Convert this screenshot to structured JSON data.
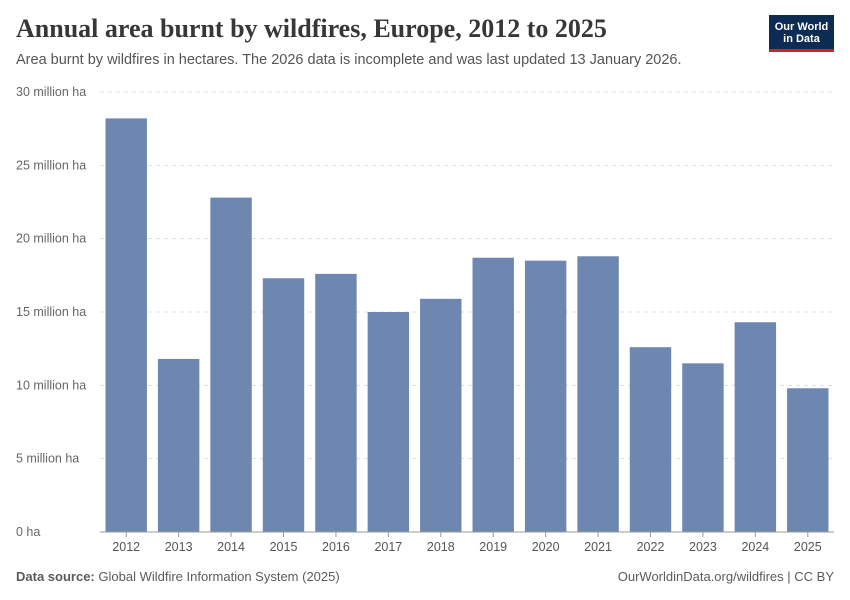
{
  "header": {
    "title": "Annual area burnt by wildfires, Europe, 2012 to 2025",
    "subtitle": "Area burnt by wildfires in hectares. The 2026 data is incomplete and was last updated 13 January 2026.",
    "logo_line1": "Our World",
    "logo_line2": "in Data"
  },
  "footer": {
    "source_label": "Data source:",
    "source_text": "Global Wildfire Information System (2025)",
    "credit": "OurWorldinData.org/wildfires | CC BY"
  },
  "colors": {
    "bar": "#6e87b0",
    "grid": "#dddddd",
    "axis": "#999999",
    "logo_bg": "#0d2c54",
    "logo_accent": "#ce261e"
  },
  "chart_data": {
    "type": "bar",
    "title": "Annual area burnt by wildfires, Europe, 2012 to 2025",
    "xlabel": "",
    "ylabel": "",
    "categories": [
      "2012",
      "2013",
      "2014",
      "2015",
      "2016",
      "2017",
      "2018",
      "2019",
      "2020",
      "2021",
      "2022",
      "2023",
      "2024",
      "2025"
    ],
    "values": [
      28.2,
      11.8,
      22.8,
      17.3,
      17.6,
      15.0,
      15.9,
      18.7,
      18.5,
      18.8,
      12.6,
      11.5,
      14.3,
      9.8
    ],
    "value_unit": "million ha",
    "ylim": [
      0,
      30
    ],
    "yticks": [
      0,
      5,
      10,
      15,
      20,
      25,
      30
    ],
    "ytick_labels": [
      "0 ha",
      "5 million ha",
      "10 million ha",
      "15 million ha",
      "20 million ha",
      "25 million ha",
      "30 million ha"
    ],
    "grid": true
  }
}
